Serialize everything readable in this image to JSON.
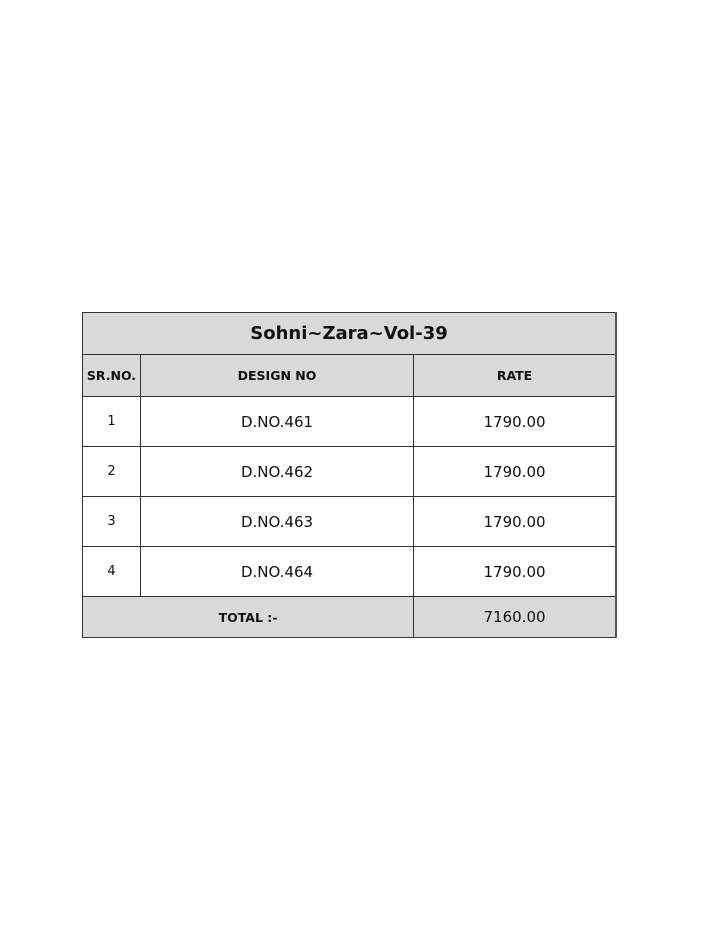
{
  "title": "Sohni~Zara~Vol-39",
  "headers": {
    "sr": "SR.NO.",
    "design": "DESIGN NO",
    "rate": "RATE"
  },
  "rows": [
    {
      "sr": "1",
      "design": "D.NO.461",
      "rate": "1790.00"
    },
    {
      "sr": "2",
      "design": "D.NO.462",
      "rate": "1790.00"
    },
    {
      "sr": "3",
      "design": "D.NO.463",
      "rate": "1790.00"
    },
    {
      "sr": "4",
      "design": "D.NO.464",
      "rate": "1790.00"
    }
  ],
  "total": {
    "label": "TOTAL :-",
    "value": "7160.00"
  }
}
